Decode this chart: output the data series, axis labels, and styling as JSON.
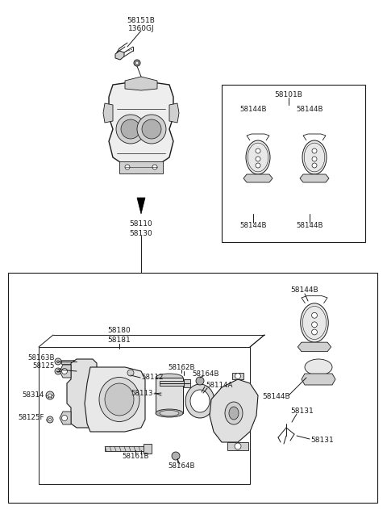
{
  "bg_color": "#ffffff",
  "lc": "#1a1a1a",
  "gray1": "#d0d0d0",
  "gray2": "#b0b0b0",
  "gray3": "#888888",
  "parts": {
    "bolt_label1": "58151B",
    "bolt_label2": "1360GJ",
    "caliper_label1": "58110",
    "caliper_label2": "58130",
    "pad_box_label": "58101B",
    "pad_label": "58144B",
    "label_58180": "58180",
    "label_58181": "58181",
    "label_58163B": "58163B",
    "label_58125": "58125",
    "label_58314": "58314",
    "label_58125F": "58125F",
    "label_58162B": "58162B",
    "label_58164B": "58164B",
    "label_58112": "58112",
    "label_58113": "58113",
    "label_58114A": "58114A",
    "label_58161B": "58161B",
    "label_58131": "58131"
  }
}
